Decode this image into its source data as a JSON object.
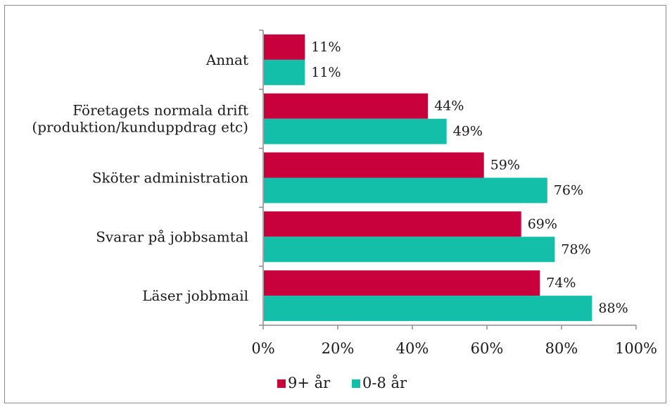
{
  "chart_data": {
    "type": "bar",
    "orientation": "horizontal",
    "categories": [
      [
        "Annat"
      ],
      [
        "Företagets normala drift",
        "(produktion/kunduppdrag etc)"
      ],
      [
        "Sköter administration"
      ],
      [
        "Svarar på jobbsamtal"
      ],
      [
        "Läser jobbmail"
      ]
    ],
    "series": [
      {
        "name": "9+ år",
        "color": "#C8003C",
        "values": [
          11,
          44,
          59,
          69,
          74
        ],
        "labels": [
          "11%",
          "44%",
          "59%",
          "69%",
          "74%"
        ]
      },
      {
        "name": "0-8 år",
        "color": "#14BFAA",
        "values": [
          11,
          49,
          76,
          78,
          88
        ],
        "labels": [
          "11%",
          "49%",
          "76%",
          "78%",
          "88%"
        ]
      }
    ],
    "xlim": [
      0,
      100
    ],
    "xticks": [
      0,
      20,
      40,
      60,
      80,
      100
    ],
    "xtick_labels": [
      "0%",
      "20%",
      "40%",
      "60%",
      "80%",
      "100%"
    ],
    "legend": {
      "position": "bottom"
    },
    "grid": false
  }
}
